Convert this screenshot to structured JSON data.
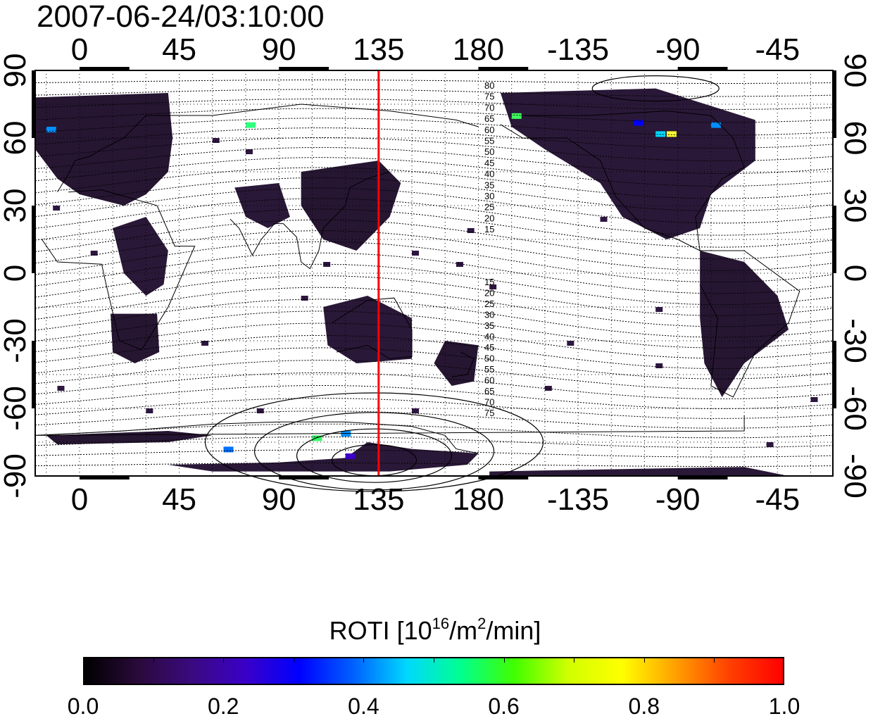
{
  "title": "2007-06-24/03:10:00",
  "map": {
    "x_ticks_top": [
      "0",
      "45",
      "90",
      "135",
      "180",
      "-135",
      "-90",
      "-45"
    ],
    "x_ticks_bottom": [
      "0",
      "45",
      "90",
      "135",
      "180",
      "-135",
      "-90",
      "-45"
    ],
    "y_ticks_left": [
      "90",
      "60",
      "30",
      "0",
      "-30",
      "-60",
      "-90"
    ],
    "y_ticks_right": [
      "90",
      "60",
      "30",
      "0",
      "-30",
      "-60",
      "-90"
    ],
    "marker_longitude": 135,
    "marker_color": "#ff0000",
    "contour_labels_north": [
      "80",
      "75",
      "70",
      "65",
      "60",
      "55",
      "50",
      "45",
      "40",
      "35",
      "30",
      "25",
      "20",
      "15"
    ],
    "contour_labels_south": [
      "15",
      "20",
      "25",
      "30",
      "35",
      "40",
      "45",
      "50",
      "55",
      "60",
      "65",
      "70",
      "75"
    ]
  },
  "colorbar": {
    "title_main": "ROTI  [10",
    "title_sup1": "16",
    "title_mid": "/m",
    "title_sup2": "2",
    "title_end": "/min]",
    "ticks": [
      "0.0",
      "0.2",
      "0.4",
      "0.6",
      "0.8",
      "1.0"
    ],
    "colors": [
      "#000000",
      "#2a0a3a",
      "#3a0a80",
      "#3a00c8",
      "#0000ff",
      "#0060ff",
      "#00d8ff",
      "#00ff90",
      "#40ff00",
      "#d0ff00",
      "#ffff00",
      "#ffa000",
      "#ff4000",
      "#ff0000"
    ]
  }
}
